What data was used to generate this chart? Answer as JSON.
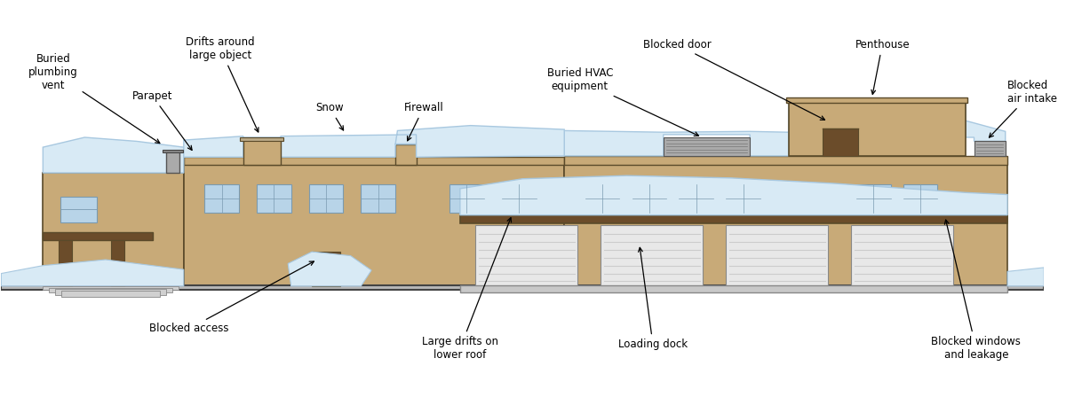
{
  "bg_color": "#ffffff",
  "building_color": "#c8aa78",
  "building_outline": "#5a4a2a",
  "snow_color": "#d8eaf5",
  "snow_outline": "#a8c8e0",
  "dark_brown": "#6b4c2a",
  "window_fill": "#b8d4e8",
  "window_outline": "#7a9ab0",
  "gray_fill": "#c8c8c8",
  "ground_color": "#d0d0d0",
  "annotations": [
    {
      "text": "Buried\nplumbing\nvent",
      "txy": [
        0.05,
        0.82
      ],
      "axy": [
        0.155,
        0.635
      ],
      "ha": "center",
      "va": "center"
    },
    {
      "text": "Parapet",
      "txy": [
        0.145,
        0.76
      ],
      "axy": [
        0.185,
        0.615
      ],
      "ha": "center",
      "va": "center"
    },
    {
      "text": "Drifts around\nlarge object",
      "txy": [
        0.21,
        0.88
      ],
      "axy": [
        0.248,
        0.66
      ],
      "ha": "center",
      "va": "center"
    },
    {
      "text": "Snow",
      "txy": [
        0.315,
        0.73
      ],
      "axy": [
        0.33,
        0.665
      ],
      "ha": "center",
      "va": "center"
    },
    {
      "text": "Firewall",
      "txy": [
        0.405,
        0.73
      ],
      "axy": [
        0.388,
        0.638
      ],
      "ha": "center",
      "va": "center"
    },
    {
      "text": "Buried HVAC\nequipment",
      "txy": [
        0.555,
        0.8
      ],
      "axy": [
        0.672,
        0.655
      ],
      "ha": "center",
      "va": "center"
    },
    {
      "text": "Blocked door",
      "txy": [
        0.648,
        0.89
      ],
      "axy": [
        0.793,
        0.695
      ],
      "ha": "center",
      "va": "center"
    },
    {
      "text": "Penthouse",
      "txy": [
        0.845,
        0.89
      ],
      "axy": [
        0.835,
        0.755
      ],
      "ha": "center",
      "va": "center"
    },
    {
      "text": "Blocked\nair intake",
      "txy": [
        0.965,
        0.77
      ],
      "axy": [
        0.945,
        0.648
      ],
      "ha": "left",
      "va": "center"
    },
    {
      "text": "Blocked access",
      "txy": [
        0.18,
        0.17
      ],
      "axy": [
        0.303,
        0.345
      ],
      "ha": "center",
      "va": "center"
    },
    {
      "text": "Large drifts on\nlower roof",
      "txy": [
        0.44,
        0.12
      ],
      "axy": [
        0.49,
        0.46
      ],
      "ha": "center",
      "va": "center"
    },
    {
      "text": "Loading dock",
      "txy": [
        0.625,
        0.13
      ],
      "axy": [
        0.612,
        0.385
      ],
      "ha": "center",
      "va": "center"
    },
    {
      "text": "Blocked windows\nand leakage",
      "txy": [
        0.935,
        0.12
      ],
      "axy": [
        0.905,
        0.455
      ],
      "ha": "center",
      "va": "center"
    }
  ]
}
